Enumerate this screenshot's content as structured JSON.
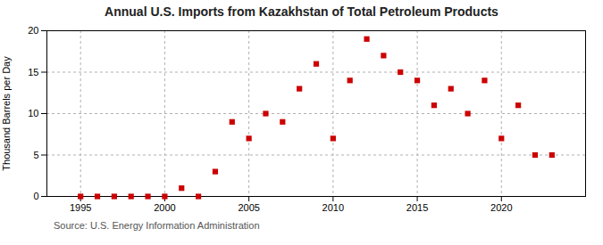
{
  "chart_data": {
    "type": "scatter",
    "title": "Annual U.S. Imports from Kazakhstan of Total Petroleum Products",
    "ylabel": "Thousand Barrels per Day",
    "source": "Source: U.S. Energy Information Administration",
    "x": [
      1995,
      1996,
      1997,
      1998,
      1999,
      2000,
      2001,
      2002,
      2003,
      2004,
      2005,
      2006,
      2007,
      2008,
      2009,
      2010,
      2011,
      2012,
      2013,
      2014,
      2015,
      2016,
      2017,
      2018,
      2019,
      2020,
      2021,
      2022,
      2023
    ],
    "values": [
      0,
      0,
      0,
      0,
      0,
      0,
      1,
      0,
      3,
      9,
      7,
      10,
      9,
      13,
      16,
      7,
      14,
      19,
      17,
      15,
      14,
      11,
      13,
      10,
      14,
      7,
      11,
      5,
      5
    ],
    "color": "#cc0000",
    "marker": "square",
    "xlim": [
      1993,
      2025
    ],
    "xticks": [
      1995,
      2000,
      2005,
      2010,
      2015,
      2020
    ],
    "ylim": [
      0,
      20
    ],
    "yticks": [
      0,
      5,
      10,
      15,
      20
    ],
    "grid": true
  }
}
